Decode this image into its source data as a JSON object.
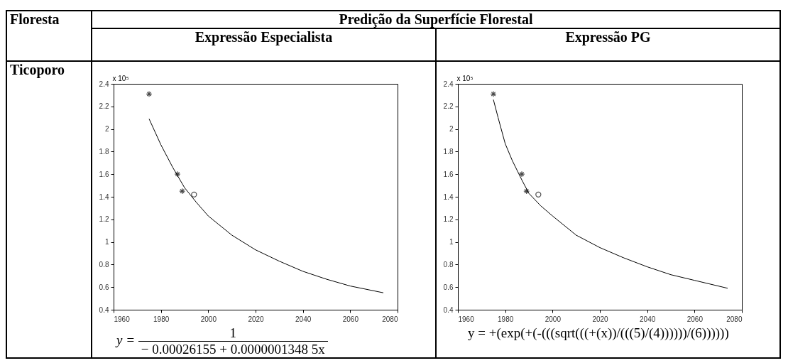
{
  "chart_data": [
    {
      "type": "line",
      "title": "Expressão Especialista",
      "ylabel": "x 10⁵",
      "xlim": [
        1960,
        2080
      ],
      "xticks": [
        1960,
        1980,
        2000,
        2020,
        2040,
        2060,
        2080
      ],
      "ylim": [
        0.4,
        2.4
      ],
      "yticks": [
        0.4,
        0.6,
        0.8,
        1,
        1.2,
        1.4,
        1.6,
        1.8,
        2,
        2.2,
        2.4
      ],
      "grid": false,
      "annotations": [
        "Floresta",
        "Predição da Superfície Florestal",
        "Ticoporo",
        "y =",
        "1",
        "− 0.00026155 + 0.0000001348 5x"
      ],
      "series": [
        {
          "type": "scatter",
          "marker": "cross",
          "color": "#000000",
          "x": [
            1975,
            1987,
            1989
          ],
          "values": [
            2.31,
            1.6,
            1.45
          ]
        },
        {
          "type": "scatter",
          "marker": "circle",
          "color": "#000000",
          "x": [
            1994
          ],
          "values": [
            1.42
          ]
        },
        {
          "type": "line",
          "marker": "none",
          "color": "#000000",
          "x": [
            1975,
            1980,
            1985,
            1990,
            1995,
            2000,
            2010,
            2020,
            2030,
            2040,
            2050,
            2060,
            2074
          ],
          "values": [
            2.09,
            1.86,
            1.66,
            1.48,
            1.35,
            1.23,
            1.06,
            0.93,
            0.83,
            0.74,
            0.67,
            0.61,
            0.55
          ]
        }
      ]
    },
    {
      "type": "line",
      "title": "Expressão PG",
      "ylabel": "x 10⁵",
      "xlim": [
        1960,
        2080
      ],
      "xticks": [
        1960,
        1980,
        2000,
        2020,
        2040,
        2060,
        2080
      ],
      "ylim": [
        0.4,
        2.4
      ],
      "yticks": [
        0.4,
        0.6,
        0.8,
        1,
        1.2,
        1.4,
        1.6,
        1.8,
        2,
        2.2,
        2.4
      ],
      "grid": false,
      "annotations": [
        "y = +(exp(+(-(((sqrt(((+(x))/(((5)/(4))))))/(6))))))"
      ],
      "series": [
        {
          "type": "scatter",
          "marker": "cross",
          "color": "#000000",
          "x": [
            1975,
            1987,
            1989
          ],
          "values": [
            2.31,
            1.6,
            1.45
          ]
        },
        {
          "type": "scatter",
          "marker": "circle",
          "color": "#000000",
          "x": [
            1994
          ],
          "values": [
            1.42
          ]
        },
        {
          "type": "line",
          "marker": "none",
          "color": "#000000",
          "x": [
            1975,
            1977,
            1980,
            1983,
            1987,
            1990,
            1995,
            2000,
            2010,
            2020,
            2030,
            2040,
            2050,
            2060,
            2074
          ],
          "values": [
            2.26,
            2.1,
            1.87,
            1.72,
            1.55,
            1.43,
            1.32,
            1.23,
            1.06,
            0.95,
            0.86,
            0.78,
            0.71,
            0.66,
            0.59
          ]
        }
      ]
    }
  ]
}
